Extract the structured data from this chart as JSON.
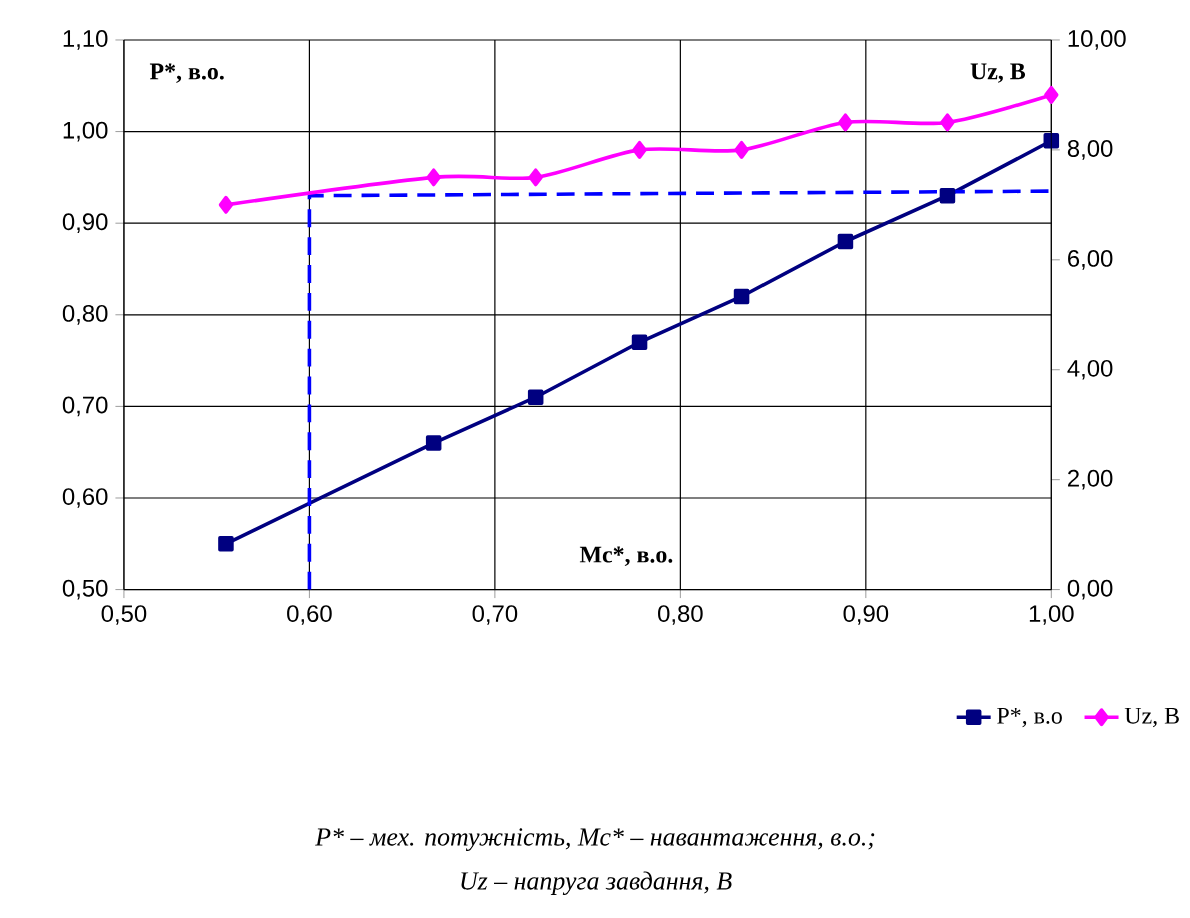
{
  "chart_data": {
    "type": "line",
    "xlabel": "Mc*, в.о.",
    "ylabel": "P*, в.о.",
    "y2label": "Uz, В",
    "xlim": [
      0.5,
      1.0
    ],
    "xticks": [
      {
        "value": 0.5,
        "label": "0,50"
      },
      {
        "value": 0.6,
        "label": "0,60"
      },
      {
        "value": 0.7,
        "label": "0,70"
      },
      {
        "value": 0.8,
        "label": "0,80"
      },
      {
        "value": 0.9,
        "label": "0,90"
      },
      {
        "value": 1.0,
        "label": "1,00"
      }
    ],
    "ylim": [
      0.5,
      1.1
    ],
    "yticks": [
      {
        "value": 0.5,
        "label": "0,50"
      },
      {
        "value": 0.6,
        "label": "0,60"
      },
      {
        "value": 0.7,
        "label": "0,70"
      },
      {
        "value": 0.8,
        "label": "0,80"
      },
      {
        "value": 0.9,
        "label": "0,90"
      },
      {
        "value": 1.0,
        "label": "1,00"
      },
      {
        "value": 1.1,
        "label": "1,10"
      }
    ],
    "y2lim": [
      0,
      10
    ],
    "y2ticks": [
      {
        "value": 0,
        "label": "0,00"
      },
      {
        "value": 2,
        "label": "2,00"
      },
      {
        "value": 4,
        "label": "4,00"
      },
      {
        "value": 6,
        "label": "6,00"
      },
      {
        "value": 8,
        "label": "8,00"
      },
      {
        "value": 10,
        "label": "10,00"
      }
    ],
    "grid": true,
    "legend": "bottom right",
    "series": [
      {
        "name": "P*, в.о",
        "color": "#000080",
        "marker": "square",
        "x": [
          0.555,
          0.667,
          0.722,
          0.778,
          0.833,
          0.889,
          0.944,
          1.0
        ],
        "values": [
          0.55,
          0.66,
          0.71,
          0.77,
          0.82,
          0.88,
          0.93,
          0.99
        ]
      },
      {
        "name": "Uz, В",
        "color": "#ff00ff",
        "marker": "diamond",
        "axis": "y2",
        "x": [
          0.555,
          0.667,
          0.722,
          0.778,
          0.833,
          0.889,
          0.944,
          1.0
        ],
        "values": [
          7.0,
          7.5,
          7.5,
          8.0,
          8.0,
          8.5,
          8.5,
          9.0
        ]
      },
      {
        "color": "#0000ff",
        "marker": "none",
        "line_style": "dashed",
        "x": [
          0.6,
          0.6,
          1.0
        ],
        "values": [
          0.5,
          0.93,
          0.935
        ]
      }
    ],
    "annotations": [
      "P* – мех. потужність, Mc* – навантаження, в.о.;",
      "Uz – напруга  завдання, В"
    ]
  }
}
